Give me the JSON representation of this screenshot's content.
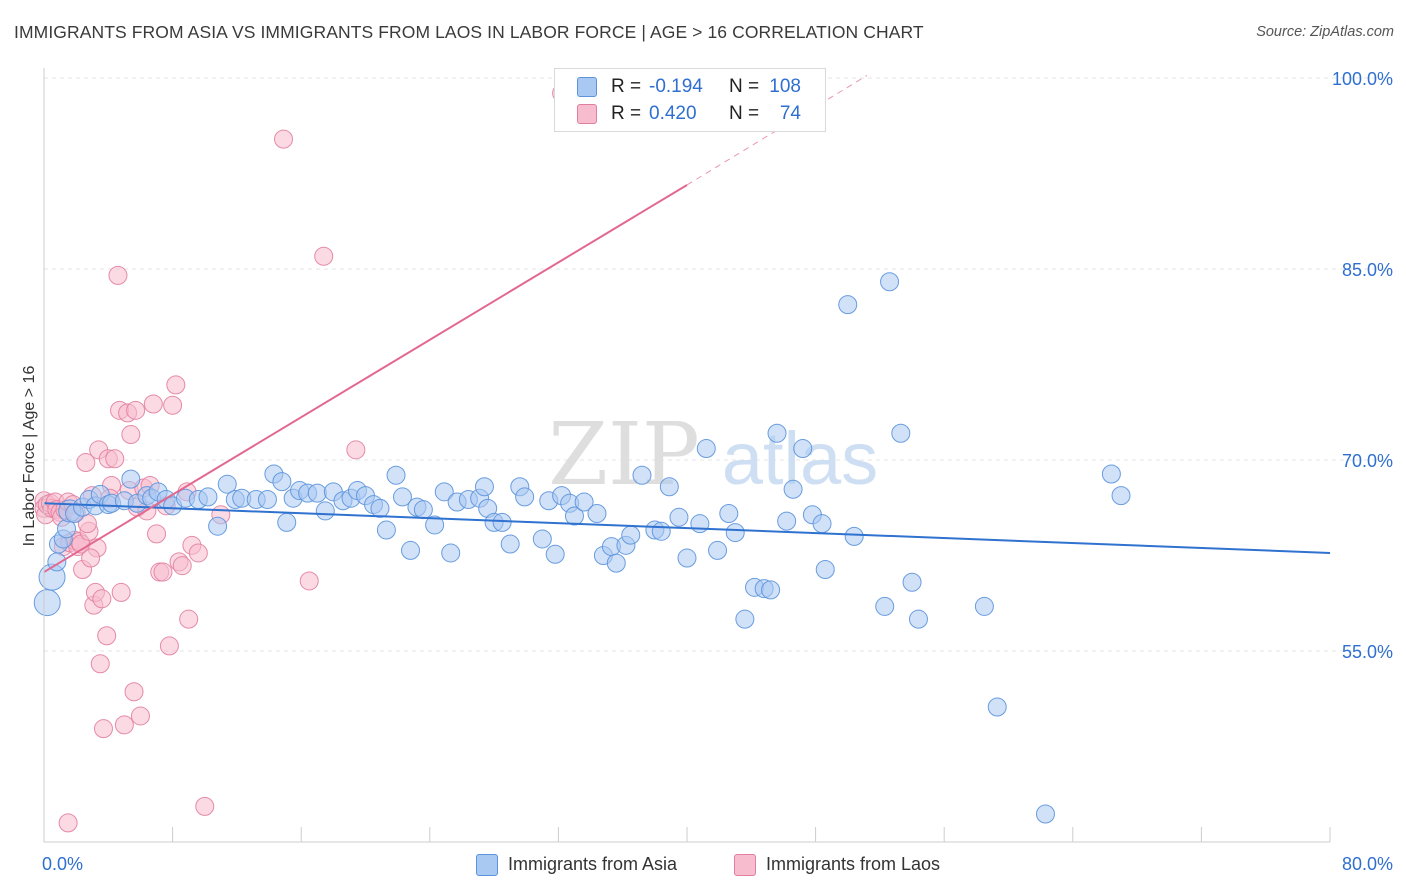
{
  "title": "IMMIGRANTS FROM ASIA VS IMMIGRANTS FROM LAOS IN LABOR FORCE | AGE > 16 CORRELATION CHART",
  "source": "Source: ZipAtlas.com",
  "watermark": {
    "zip": "ZIP",
    "atlas": "atlas"
  },
  "legend_top": {
    "rows": [
      {
        "r_label": "R =",
        "r_value": "-0.194",
        "n_label": "N =",
        "n_value": "108"
      },
      {
        "r_label": "R =",
        "r_value": "0.420",
        "n_label": "N =",
        "n_value": "74"
      }
    ]
  },
  "legend_bottom": {
    "asia": "Immigrants from Asia",
    "laos": "Immigrants from Laos"
  },
  "colors": {
    "asia_fill": "#aac9f2",
    "asia_stroke": "#5b93dc",
    "asia_line": "#2f72d0",
    "laos_fill": "#f7bccd",
    "laos_stroke": "#e27fa0",
    "laos_line": "#e2688f",
    "tick_label": "#2f6fd0",
    "grid": "#e6e6e6"
  },
  "chart_data": {
    "type": "scatter",
    "xlabel": "",
    "ylabel": "In Labor Force | Age > 16",
    "xlim": [
      0,
      80
    ],
    "ylim": [
      40,
      102
    ],
    "x_tick_labels": [
      "0.0%",
      "80.0%"
    ],
    "y_ticks": [
      55,
      70,
      85,
      100
    ],
    "y_tick_labels": [
      "55.0%",
      "70.0%",
      "85.0%",
      "100.0%"
    ],
    "grid": true,
    "series": [
      {
        "name": "Immigrants from Asia",
        "trend": {
          "x": [
            0,
            80
          ],
          "y": [
            66.6,
            62.7
          ]
        },
        "points": [
          [
            0.2,
            58.8,
            13
          ],
          [
            0.5,
            60.8,
            13
          ],
          [
            0.8,
            62.0,
            9
          ],
          [
            0.9,
            63.4,
            9
          ],
          [
            1.2,
            63.8,
            9
          ],
          [
            1.4,
            64.6,
            9
          ],
          [
            1.6,
            66.0,
            11
          ],
          [
            1.9,
            65.8,
            9
          ],
          [
            2.4,
            66.3,
            9
          ],
          [
            2.8,
            66.9,
            9
          ],
          [
            3.2,
            66.4,
            9
          ],
          [
            3.5,
            67.3,
            9
          ],
          [
            4.0,
            66.5,
            9
          ],
          [
            4.2,
            66.6,
            9
          ],
          [
            5.0,
            66.8,
            9
          ],
          [
            5.4,
            68.5,
            9
          ],
          [
            5.8,
            66.6,
            9
          ],
          [
            6.4,
            67.2,
            9
          ],
          [
            6.7,
            67.0,
            9
          ],
          [
            7.1,
            67.5,
            9
          ],
          [
            7.6,
            66.9,
            9
          ],
          [
            8.0,
            66.4,
            9
          ],
          [
            8.8,
            67.0,
            9
          ],
          [
            9.6,
            66.9,
            9
          ],
          [
            10.2,
            67.1,
            9
          ],
          [
            10.8,
            64.8,
            9
          ],
          [
            11.4,
            68.1,
            9
          ],
          [
            11.9,
            66.9,
            9
          ],
          [
            12.3,
            67.0,
            9
          ],
          [
            13.2,
            66.9,
            9
          ],
          [
            13.9,
            66.9,
            9
          ],
          [
            14.3,
            68.9,
            9
          ],
          [
            14.8,
            68.3,
            9
          ],
          [
            15.1,
            65.1,
            9
          ],
          [
            15.5,
            67.0,
            9
          ],
          [
            15.9,
            67.6,
            9
          ],
          [
            16.4,
            67.4,
            9
          ],
          [
            17.0,
            67.4,
            9
          ],
          [
            17.5,
            66.0,
            9
          ],
          [
            18.0,
            67.5,
            9
          ],
          [
            18.6,
            66.8,
            9
          ],
          [
            19.1,
            67.0,
            9
          ],
          [
            19.5,
            67.6,
            9
          ],
          [
            20.0,
            67.2,
            9
          ],
          [
            20.5,
            66.5,
            9
          ],
          [
            20.9,
            66.2,
            9
          ],
          [
            21.3,
            64.5,
            9
          ],
          [
            21.9,
            68.8,
            9
          ],
          [
            22.3,
            67.1,
            9
          ],
          [
            22.8,
            62.9,
            9
          ],
          [
            23.2,
            66.3,
            9
          ],
          [
            23.6,
            66.1,
            9
          ],
          [
            24.3,
            64.9,
            9
          ],
          [
            24.9,
            67.5,
            9
          ],
          [
            25.3,
            62.7,
            9
          ],
          [
            25.7,
            66.7,
            9
          ],
          [
            26.4,
            66.9,
            9
          ],
          [
            27.1,
            67.0,
            9
          ],
          [
            27.4,
            67.9,
            9
          ],
          [
            27.6,
            66.2,
            9
          ],
          [
            28.0,
            65.1,
            9
          ],
          [
            28.5,
            65.1,
            9
          ],
          [
            29.0,
            63.4,
            9
          ],
          [
            29.6,
            67.9,
            9
          ],
          [
            29.9,
            67.1,
            9
          ],
          [
            31.0,
            63.8,
            9
          ],
          [
            31.4,
            66.8,
            9
          ],
          [
            31.8,
            62.6,
            9
          ],
          [
            32.2,
            67.2,
            9
          ],
          [
            32.7,
            66.6,
            9
          ],
          [
            33.0,
            65.6,
            9
          ],
          [
            33.6,
            66.7,
            9
          ],
          [
            34.4,
            65.8,
            9
          ],
          [
            34.8,
            62.5,
            9
          ],
          [
            35.3,
            63.2,
            9
          ],
          [
            35.6,
            61.9,
            9
          ],
          [
            36.2,
            63.3,
            9
          ],
          [
            36.5,
            64.1,
            9
          ],
          [
            37.2,
            68.8,
            9
          ],
          [
            38.0,
            64.5,
            9
          ],
          [
            38.4,
            64.4,
            9
          ],
          [
            38.9,
            67.9,
            9
          ],
          [
            39.5,
            65.5,
            9
          ],
          [
            40.0,
            62.3,
            9
          ],
          [
            40.8,
            65.0,
            9
          ],
          [
            41.2,
            70.9,
            9
          ],
          [
            41.9,
            62.9,
            9
          ],
          [
            42.6,
            65.8,
            9
          ],
          [
            43.0,
            64.3,
            9
          ],
          [
            43.6,
            57.5,
            9
          ],
          [
            44.2,
            60.0,
            9
          ],
          [
            44.8,
            59.9,
            9
          ],
          [
            45.2,
            59.8,
            9
          ],
          [
            45.6,
            72.1,
            9
          ],
          [
            46.2,
            65.2,
            9
          ],
          [
            46.6,
            67.7,
            9
          ],
          [
            47.2,
            70.9,
            9
          ],
          [
            47.8,
            65.7,
            9
          ],
          [
            48.4,
            65.0,
            9
          ],
          [
            48.6,
            61.4,
            9
          ],
          [
            50.0,
            82.2,
            9
          ],
          [
            50.4,
            64.0,
            9
          ],
          [
            52.3,
            58.5,
            9
          ],
          [
            52.6,
            84.0,
            9
          ],
          [
            53.3,
            72.1,
            9
          ],
          [
            54.0,
            60.4,
            9
          ],
          [
            54.4,
            57.5,
            9
          ],
          [
            58.5,
            58.5,
            9
          ],
          [
            59.3,
            50.6,
            9
          ],
          [
            62.3,
            42.2,
            9
          ],
          [
            66.4,
            68.9,
            9
          ],
          [
            67.0,
            67.2,
            9
          ]
        ]
      },
      {
        "name": "Immigrants from Laos",
        "trend": {
          "x": [
            0,
            40
          ],
          "y": [
            61.2,
            91.6
          ],
          "dash_x": [
            40,
            51.2
          ],
          "dash_y": [
            91.6,
            100.2
          ]
        },
        "points": [
          [
            0.0,
            66.8,
            9
          ],
          [
            0.0,
            66.2,
            9
          ],
          [
            0.1,
            65.7,
            9
          ],
          [
            0.2,
            66.5,
            9
          ],
          [
            0.4,
            66.6,
            9
          ],
          [
            0.5,
            66.2,
            9
          ],
          [
            0.7,
            66.7,
            9
          ],
          [
            0.8,
            66.1,
            9
          ],
          [
            1.0,
            65.9,
            9
          ],
          [
            1.1,
            65.5,
            9
          ],
          [
            1.2,
            63.2,
            9
          ],
          [
            1.3,
            66.1,
            9
          ],
          [
            1.5,
            66.7,
            9
          ],
          [
            1.6,
            63.5,
            9
          ],
          [
            1.8,
            66.5,
            9
          ],
          [
            1.9,
            63.7,
            9
          ],
          [
            2.0,
            65.9,
            9
          ],
          [
            2.1,
            63.2,
            9
          ],
          [
            2.2,
            63.6,
            9
          ],
          [
            2.3,
            63.4,
            9
          ],
          [
            2.4,
            61.4,
            9
          ],
          [
            2.6,
            69.8,
            9
          ],
          [
            2.8,
            64.4,
            9
          ],
          [
            3.0,
            67.2,
            9
          ],
          [
            3.1,
            58.6,
            9
          ],
          [
            3.2,
            59.6,
            9
          ],
          [
            3.3,
            63.1,
            9
          ],
          [
            3.4,
            70.8,
            9
          ],
          [
            3.5,
            54.0,
            9
          ],
          [
            3.7,
            48.9,
            9
          ],
          [
            3.9,
            56.2,
            9
          ],
          [
            4.0,
            70.1,
            9
          ],
          [
            4.2,
            68.0,
            9
          ],
          [
            4.4,
            70.1,
            9
          ],
          [
            4.6,
            84.5,
            9
          ],
          [
            4.7,
            73.9,
            9
          ],
          [
            4.8,
            59.6,
            9
          ],
          [
            5.0,
            49.2,
            9
          ],
          [
            5.2,
            73.7,
            9
          ],
          [
            5.3,
            67.6,
            9
          ],
          [
            5.4,
            72.0,
            9
          ],
          [
            5.6,
            51.8,
            9
          ],
          [
            5.7,
            73.9,
            9
          ],
          [
            5.8,
            66.3,
            9
          ],
          [
            6.0,
            49.9,
            9
          ],
          [
            6.2,
            67.8,
            9
          ],
          [
            6.4,
            66.0,
            9
          ],
          [
            6.8,
            74.4,
            9
          ],
          [
            7.0,
            64.2,
            9
          ],
          [
            7.2,
            61.2,
            9
          ],
          [
            7.4,
            61.2,
            9
          ],
          [
            7.6,
            66.4,
            9
          ],
          [
            7.8,
            55.4,
            9
          ],
          [
            8.0,
            74.3,
            9
          ],
          [
            8.2,
            75.9,
            9
          ],
          [
            8.4,
            62.0,
            9
          ],
          [
            8.6,
            61.7,
            9
          ],
          [
            9.0,
            57.5,
            9
          ],
          [
            9.2,
            63.3,
            9
          ],
          [
            9.6,
            62.7,
            9
          ],
          [
            10.0,
            42.8,
            9
          ],
          [
            11.0,
            65.7,
            9
          ],
          [
            1.5,
            41.5,
            9
          ],
          [
            14.9,
            95.2,
            9
          ],
          [
            16.5,
            60.5,
            9
          ],
          [
            17.4,
            86.0,
            9
          ],
          [
            19.4,
            70.8,
            9
          ],
          [
            32.2,
            98.8,
            9
          ],
          [
            2.7,
            65.0,
            9
          ],
          [
            4.1,
            67.0,
            9
          ],
          [
            6.6,
            68.0,
            9
          ],
          [
            8.9,
            67.5,
            9
          ],
          [
            2.9,
            62.3,
            9
          ],
          [
            3.6,
            59.1,
            9
          ]
        ]
      }
    ]
  }
}
